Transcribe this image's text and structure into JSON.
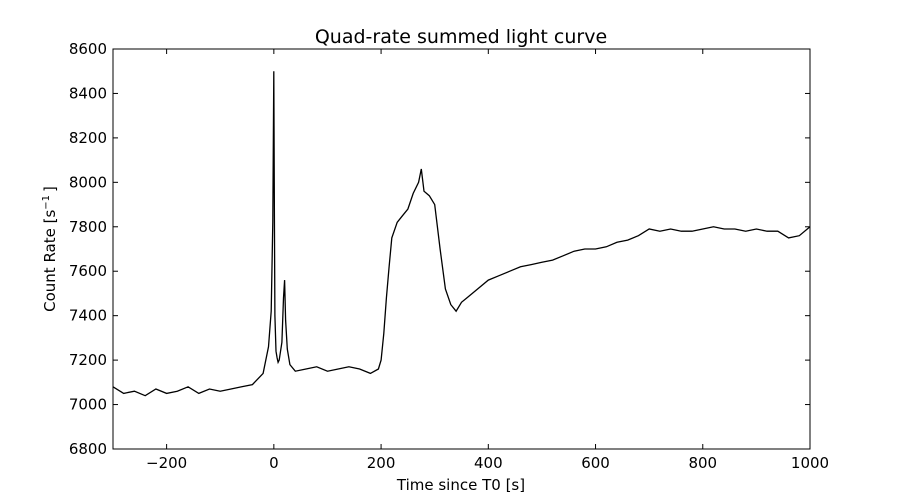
{
  "chart_data": {
    "type": "line",
    "title": "Quad-rate summed light curve",
    "xlabel": "Time since T0 [s]",
    "ylabel_main": "Count Rate [s",
    "ylabel_sup": "−1",
    "ylabel_end": "]",
    "xlim": [
      -300,
      1000
    ],
    "ylim": [
      6800,
      8600
    ],
    "xticks": [
      -200,
      0,
      200,
      400,
      600,
      800,
      1000
    ],
    "xtick_labels": [
      "−200",
      "0",
      "200",
      "400",
      "600",
      "800",
      "1000"
    ],
    "yticks": [
      6800,
      7000,
      7200,
      7400,
      7600,
      7800,
      8000,
      8200,
      8400,
      8600
    ],
    "ytick_labels": [
      "6800",
      "7000",
      "7200",
      "7400",
      "7600",
      "7800",
      "8000",
      "8200",
      "8400",
      "8600"
    ],
    "grid": false,
    "line_color": "#000000",
    "series": [
      {
        "x": [
          -300,
          -280,
          -260,
          -240,
          -220,
          -200,
          -180,
          -160,
          -140,
          -120,
          -100,
          -80,
          -60,
          -40,
          -20,
          -10,
          -5,
          -2,
          0,
          1,
          2,
          4,
          6,
          8,
          10,
          15,
          18,
          20,
          22,
          25,
          30,
          40,
          60,
          80,
          100,
          120,
          140,
          160,
          180,
          195,
          200,
          205,
          210,
          215,
          220,
          230,
          240,
          250,
          260,
          270,
          275,
          280,
          290,
          300,
          310,
          320,
          330,
          340,
          350,
          360,
          380,
          400,
          420,
          440,
          460,
          480,
          500,
          520,
          540,
          560,
          580,
          600,
          620,
          640,
          660,
          680,
          700,
          720,
          740,
          760,
          780,
          800,
          820,
          840,
          860,
          880,
          900,
          920,
          940,
          960,
          980,
          1000
        ],
        "y": [
          7080,
          7050,
          7060,
          7040,
          7070,
          7050,
          7060,
          7080,
          7050,
          7070,
          7060,
          7070,
          7080,
          7090,
          7140,
          7260,
          7420,
          7820,
          8500,
          7850,
          7400,
          7240,
          7210,
          7190,
          7200,
          7280,
          7480,
          7560,
          7380,
          7250,
          7180,
          7150,
          7160,
          7170,
          7150,
          7160,
          7170,
          7160,
          7140,
          7160,
          7200,
          7320,
          7480,
          7620,
          7750,
          7820,
          7850,
          7880,
          7950,
          8000,
          8060,
          7960,
          7940,
          7900,
          7700,
          7520,
          7450,
          7420,
          7460,
          7480,
          7520,
          7560,
          7580,
          7600,
          7620,
          7630,
          7640,
          7650,
          7670,
          7690,
          7700,
          7700,
          7710,
          7730,
          7740,
          7760,
          7790,
          7780,
          7790,
          7780,
          7780,
          7790,
          7800,
          7790,
          7790,
          7780,
          7790,
          7780,
          7780,
          7750,
          7760,
          7800
        ]
      }
    ]
  }
}
